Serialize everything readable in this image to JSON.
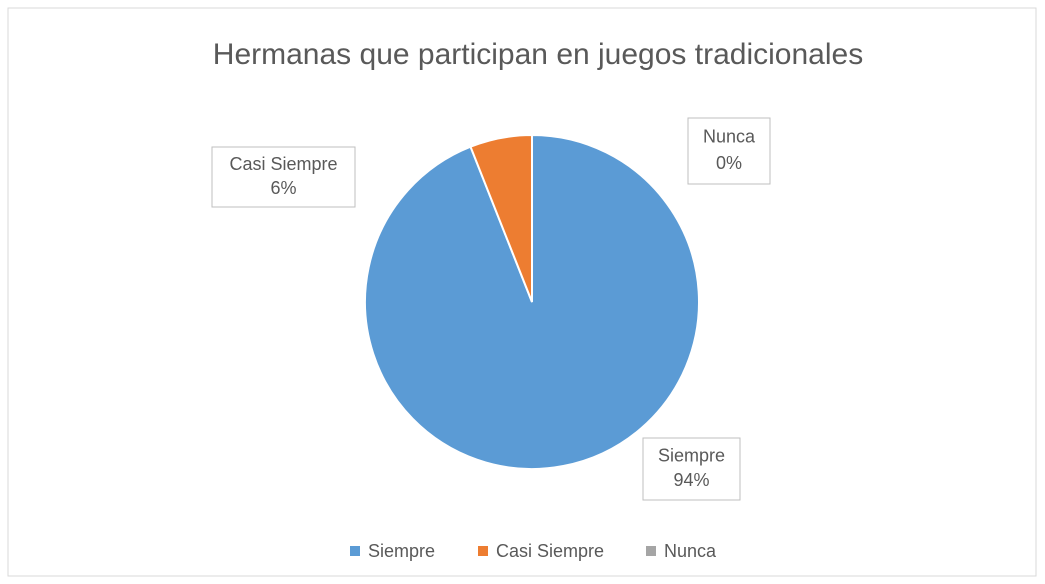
{
  "chart_data": {
    "type": "pie",
    "title": "Hermanas que participan en juegos tradicionales",
    "categories": [
      "Siempre",
      "Casi Siempre",
      "Nunca"
    ],
    "values": [
      94,
      6,
      0
    ],
    "value_labels": [
      "94%",
      "6%",
      "0%"
    ],
    "colors": [
      "#5b9bd5",
      "#ed7d31",
      "#a5a5a5"
    ],
    "legend": "bottom"
  }
}
